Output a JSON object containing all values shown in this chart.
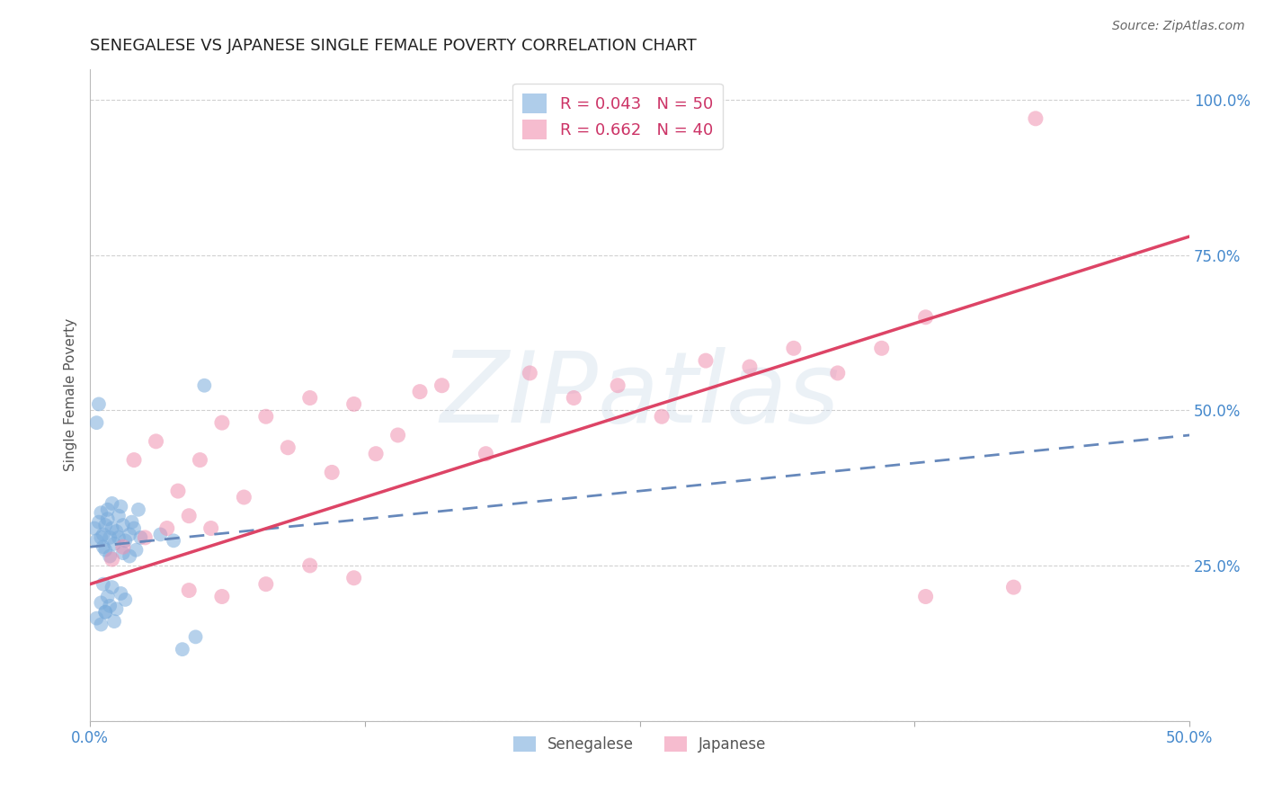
{
  "title": "SENEGALESE VS JAPANESE SINGLE FEMALE POVERTY CORRELATION CHART",
  "source": "Source: ZipAtlas.com",
  "ylabel": "Single Female Poverty",
  "xlim": [
    0.0,
    0.5
  ],
  "ylim": [
    0.0,
    1.05
  ],
  "xtick_positions": [
    0.0,
    0.125,
    0.25,
    0.375,
    0.5
  ],
  "xticklabels": [
    "0.0%",
    "",
    "",
    "",
    "50.0%"
  ],
  "ytick_positions": [
    0.0,
    0.25,
    0.5,
    0.75,
    1.0
  ],
  "yticklabels": [
    "",
    "25.0%",
    "50.0%",
    "75.0%",
    "100.0%"
  ],
  "watermark": "ZIPatlas",
  "watermark_color": "#c8d8e8",
  "blue_color": "#7aacdc",
  "pink_color": "#f090b0",
  "blue_line_color": "#6688bb",
  "pink_line_color": "#dd4466",
  "tick_color": "#4488cc",
  "grid_color": "#cccccc",
  "background_color": "#ffffff",
  "title_fontsize": 13,
  "axis_label_fontsize": 11,
  "tick_fontsize": 12,
  "legend_fontsize": 13,
  "blue_x": [
    0.002,
    0.003,
    0.004,
    0.005,
    0.005,
    0.006,
    0.006,
    0.007,
    0.007,
    0.008,
    0.008,
    0.009,
    0.009,
    0.01,
    0.01,
    0.011,
    0.012,
    0.013,
    0.013,
    0.014,
    0.015,
    0.015,
    0.016,
    0.018,
    0.018,
    0.019,
    0.02,
    0.021,
    0.022,
    0.023,
    0.003,
    0.004,
    0.005,
    0.006,
    0.007,
    0.008,
    0.01,
    0.012,
    0.014,
    0.016,
    0.003,
    0.005,
    0.007,
    0.009,
    0.011,
    0.032,
    0.038,
    0.042,
    0.048,
    0.052
  ],
  "blue_y": [
    0.31,
    0.29,
    0.32,
    0.295,
    0.335,
    0.28,
    0.3,
    0.315,
    0.275,
    0.325,
    0.34,
    0.265,
    0.295,
    0.31,
    0.35,
    0.285,
    0.305,
    0.295,
    0.33,
    0.345,
    0.27,
    0.315,
    0.29,
    0.3,
    0.265,
    0.32,
    0.31,
    0.275,
    0.34,
    0.295,
    0.48,
    0.51,
    0.19,
    0.22,
    0.175,
    0.2,
    0.215,
    0.18,
    0.205,
    0.195,
    0.165,
    0.155,
    0.175,
    0.185,
    0.16,
    0.3,
    0.29,
    0.115,
    0.135,
    0.54
  ],
  "pink_x": [
    0.01,
    0.015,
    0.02,
    0.025,
    0.03,
    0.035,
    0.04,
    0.045,
    0.05,
    0.055,
    0.06,
    0.07,
    0.08,
    0.09,
    0.1,
    0.11,
    0.12,
    0.13,
    0.14,
    0.15,
    0.16,
    0.18,
    0.2,
    0.22,
    0.24,
    0.26,
    0.28,
    0.3,
    0.32,
    0.34,
    0.36,
    0.38,
    0.06,
    0.08,
    0.1,
    0.12,
    0.38,
    0.42,
    0.43,
    0.045
  ],
  "pink_y": [
    0.26,
    0.28,
    0.42,
    0.295,
    0.45,
    0.31,
    0.37,
    0.33,
    0.42,
    0.31,
    0.48,
    0.36,
    0.49,
    0.44,
    0.52,
    0.4,
    0.51,
    0.43,
    0.46,
    0.53,
    0.54,
    0.43,
    0.56,
    0.52,
    0.54,
    0.49,
    0.58,
    0.57,
    0.6,
    0.56,
    0.6,
    0.65,
    0.2,
    0.22,
    0.25,
    0.23,
    0.2,
    0.215,
    0.97,
    0.21
  ],
  "blue_trend": [
    0.0,
    0.5,
    0.28,
    0.46
  ],
  "pink_trend": [
    0.0,
    0.5,
    0.22,
    0.78
  ],
  "legend_label_blue": "R = 0.043   N = 50",
  "legend_label_pink": "R = 0.662   N = 40",
  "bottom_legend_blue": "Senegalese",
  "bottom_legend_pink": "Japanese"
}
